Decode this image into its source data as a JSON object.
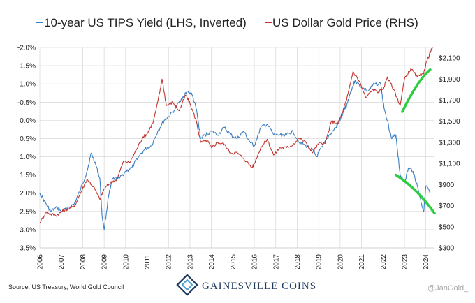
{
  "chart_data": {
    "type": "line",
    "title": "",
    "xlabel": "",
    "ylabel_left": "",
    "ylabel_right": "",
    "legend_placement": "top",
    "grid": true,
    "x_ticks": [
      "2006",
      "2007",
      "2008",
      "2009",
      "2010",
      "2011",
      "2012",
      "2013",
      "2014",
      "2015",
      "2016",
      "2017",
      "2018",
      "2019",
      "2020",
      "2021",
      "2022",
      "2023",
      "2024"
    ],
    "xlim": [
      2006,
      2024.4
    ],
    "left_axis": {
      "ticks": [
        "-2.0%",
        "-1.5%",
        "-1.0%",
        "-0.5%",
        "0.0%",
        "0.5%",
        "1.0%",
        "1.5%",
        "2.0%",
        "2.5%",
        "3.0%",
        "3.5%"
      ],
      "tick_values": [
        -2.0,
        -1.5,
        -1.0,
        -0.5,
        0.0,
        0.5,
        1.0,
        1.5,
        2.0,
        2.5,
        3.0,
        3.5
      ],
      "ylim": [
        -2.0,
        3.5
      ],
      "inverted": true
    },
    "right_axis": {
      "ticks": [
        "$2,100",
        "$1,900",
        "$1,700",
        "$1,500",
        "$1,300",
        "$1,100",
        "$900",
        "$700",
        "$500",
        "$300"
      ],
      "tick_values": [
        2100,
        1900,
        1700,
        1500,
        1300,
        1100,
        900,
        700,
        500,
        300
      ],
      "ylim": [
        300,
        2200
      ]
    },
    "series": [
      {
        "name": "10-year US TIPS Yield (LHS, Inverted)",
        "axis": "left",
        "color": "#3b7fc4",
        "x": [
          2006.0,
          2006.3,
          2006.5,
          2006.8,
          2007.0,
          2007.3,
          2007.6,
          2007.9,
          2008.2,
          2008.4,
          2008.6,
          2008.8,
          2008.9,
          2009.0,
          2009.2,
          2009.4,
          2009.7,
          2010.0,
          2010.3,
          2010.6,
          2010.9,
          2011.2,
          2011.5,
          2011.8,
          2012.0,
          2012.3,
          2012.6,
          2012.9,
          2013.1,
          2013.3,
          2013.5,
          2013.7,
          2014.0,
          2014.3,
          2014.6,
          2014.9,
          2015.2,
          2015.5,
          2015.8,
          2016.0,
          2016.3,
          2016.6,
          2016.9,
          2017.2,
          2017.5,
          2017.8,
          2018.1,
          2018.4,
          2018.7,
          2018.9,
          2019.2,
          2019.5,
          2019.8,
          2020.0,
          2020.2,
          2020.3,
          2020.5,
          2020.7,
          2021.0,
          2021.3,
          2021.6,
          2021.9,
          2022.0,
          2022.2,
          2022.4,
          2022.6,
          2022.8,
          2023.0,
          2023.2,
          2023.4,
          2023.6,
          2023.8,
          2023.9,
          2024.0,
          2024.2
        ],
        "values": [
          2.0,
          2.3,
          2.5,
          2.4,
          2.5,
          2.4,
          2.3,
          1.9,
          1.4,
          0.9,
          1.2,
          1.6,
          2.6,
          3.0,
          2.1,
          1.6,
          1.6,
          1.4,
          1.3,
          1.0,
          0.8,
          0.7,
          0.3,
          0.0,
          -0.1,
          -0.3,
          -0.6,
          -0.8,
          -0.7,
          -0.3,
          0.5,
          0.4,
          0.3,
          0.4,
          0.2,
          0.4,
          0.5,
          0.3,
          0.6,
          0.7,
          0.2,
          0.1,
          0.4,
          0.4,
          0.4,
          0.3,
          0.6,
          0.7,
          0.8,
          1.0,
          0.7,
          0.4,
          0.2,
          0.0,
          -0.3,
          -0.4,
          -0.8,
          -1.1,
          -0.9,
          -0.8,
          -1.0,
          -1.0,
          -0.5,
          0.0,
          0.5,
          0.4,
          1.5,
          1.7,
          1.3,
          1.4,
          1.8,
          2.3,
          2.5,
          1.8,
          2.0
        ]
      },
      {
        "name": "US Dollar Gold Price (RHS)",
        "axis": "right",
        "color": "#c2342e",
        "x": [
          2006.0,
          2006.3,
          2006.5,
          2006.8,
          2007.0,
          2007.3,
          2007.6,
          2007.9,
          2008.2,
          2008.5,
          2008.8,
          2009.0,
          2009.3,
          2009.6,
          2009.9,
          2010.2,
          2010.5,
          2010.8,
          2011.0,
          2011.3,
          2011.6,
          2011.7,
          2011.9,
          2012.2,
          2012.5,
          2012.8,
          2013.0,
          2013.3,
          2013.5,
          2013.8,
          2014.0,
          2014.3,
          2014.6,
          2014.9,
          2015.2,
          2015.5,
          2015.9,
          2016.0,
          2016.3,
          2016.6,
          2016.9,
          2017.2,
          2017.5,
          2017.8,
          2018.1,
          2018.4,
          2018.7,
          2019.0,
          2019.3,
          2019.6,
          2019.9,
          2020.1,
          2020.3,
          2020.6,
          2020.9,
          2021.2,
          2021.5,
          2021.8,
          2022.0,
          2022.2,
          2022.5,
          2022.8,
          2023.0,
          2023.3,
          2023.6,
          2023.9,
          2024.0,
          2024.2,
          2024.3
        ],
        "values": [
          540,
          640,
          620,
          610,
          640,
          670,
          690,
          820,
          950,
          880,
          760,
          860,
          920,
          950,
          1120,
          1110,
          1230,
          1350,
          1380,
          1500,
          1780,
          1900,
          1650,
          1680,
          1600,
          1750,
          1670,
          1500,
          1300,
          1320,
          1250,
          1300,
          1280,
          1200,
          1200,
          1150,
          1060,
          1100,
          1250,
          1330,
          1180,
          1250,
          1250,
          1280,
          1340,
          1300,
          1200,
          1290,
          1290,
          1500,
          1480,
          1580,
          1700,
          1970,
          1880,
          1720,
          1800,
          1780,
          1800,
          1920,
          1800,
          1650,
          1900,
          2000,
          1920,
          1950,
          2050,
          2150,
          2200
        ]
      }
    ],
    "annotations": [
      {
        "type": "trend-arrow",
        "color": "#2ecc40",
        "target": "gold",
        "x": [
          2022.9,
          2024.2
        ],
        "values": [
          1590,
          1990
        ]
      },
      {
        "type": "trend-arrow",
        "color": "#2ecc40",
        "target": "tips",
        "x": [
          2022.6,
          2024.4
        ],
        "values": [
          1.5,
          2.55
        ]
      }
    ]
  },
  "footer": {
    "source": "Source: US Treasury, World Gold Council",
    "brand": "GAINESVILLE COINS",
    "handle": "@JanGold_"
  }
}
